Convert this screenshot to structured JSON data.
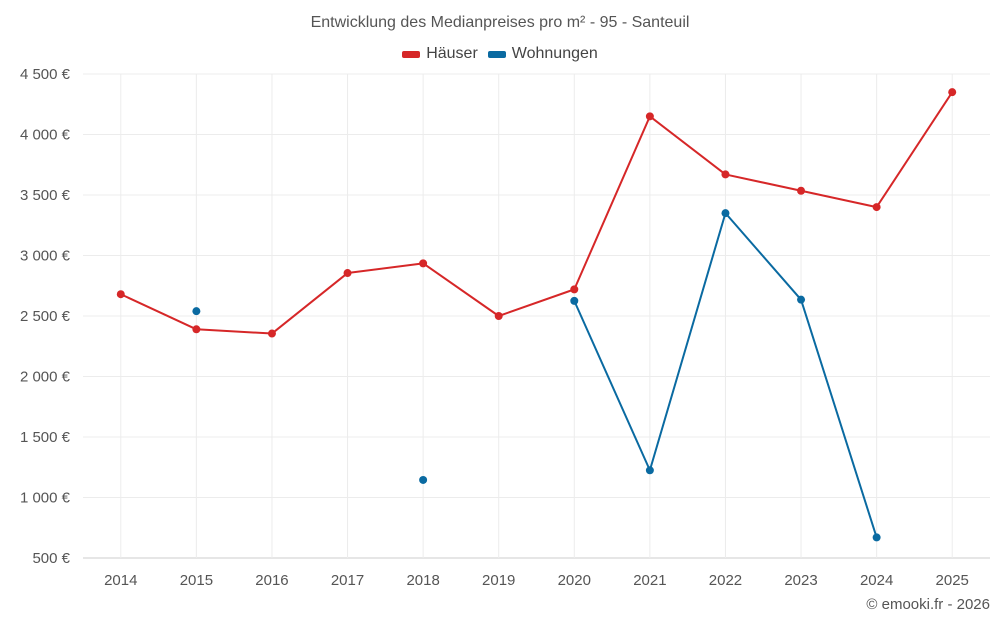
{
  "chart_data": {
    "type": "line",
    "title": "Entwicklung des Medianpreises pro m² - 95 - Santeuil",
    "categories": [
      "2014",
      "2015",
      "2016",
      "2017",
      "2018",
      "2019",
      "2020",
      "2021",
      "2022",
      "2023",
      "2024",
      "2025"
    ],
    "y_ticks": [
      "500 €",
      "1 000 €",
      "1 500 €",
      "2 000 €",
      "2 500 €",
      "3 000 €",
      "3 500 €",
      "4 000 €",
      "4 500 €"
    ],
    "y_tick_values": [
      500,
      1000,
      1500,
      2000,
      2500,
      3000,
      3500,
      4000,
      4500
    ],
    "ylim": [
      500,
      4500
    ],
    "grid": true,
    "legend_position": "top-center",
    "series": [
      {
        "name": "Häuser",
        "color": "#d62728",
        "values": [
          2680,
          2390,
          2355,
          2855,
          2935,
          2500,
          2720,
          4150,
          3670,
          3535,
          3400,
          4350
        ]
      },
      {
        "name": "Wohnungen",
        "color": "#0a6aa1",
        "values": [
          null,
          2540,
          null,
          null,
          1145,
          null,
          2625,
          1225,
          3350,
          2635,
          670,
          null
        ]
      }
    ]
  },
  "credit": "© emooki.fr - 2026"
}
